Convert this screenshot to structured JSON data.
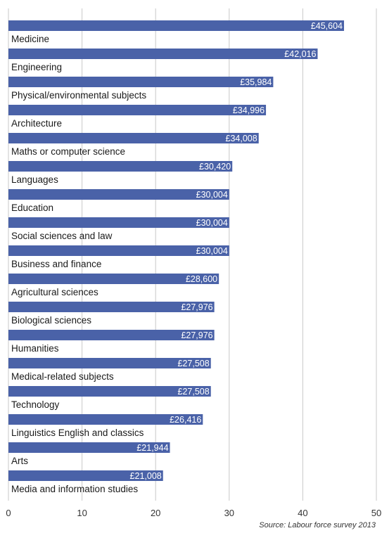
{
  "chart_data": {
    "type": "bar",
    "orientation": "horizontal",
    "categories": [
      "Medicine",
      "Engineering",
      "Physical/environmental subjects",
      "Architecture",
      "Maths or computer science",
      "Languages",
      "Education",
      "Social sciences and law",
      "Business and finance",
      "Agricultural sciences",
      "Biological sciences",
      "Humanities",
      "Medical-related subjects",
      "Technology",
      "Linguistics English and classics",
      "Arts",
      "Media and information studies"
    ],
    "values": [
      45.604,
      42.016,
      35.984,
      34.996,
      34.008,
      30.42,
      30.004,
      30.004,
      30.004,
      28.6,
      27.976,
      27.976,
      27.508,
      27.508,
      26.416,
      21.944,
      21.008
    ],
    "data_labels": [
      "£45,604",
      "£42,016",
      "£35,984",
      "£34,996",
      "£34,008",
      "£30,420",
      "£30,004",
      "£30,004",
      "£30,004",
      "£28,600",
      "£27,976",
      "£27,976",
      "£27,508",
      "£27,508",
      "£26,416",
      "£21,944",
      "£21,008"
    ],
    "xlim": [
      0,
      50
    ],
    "xticks": [
      "0",
      "10",
      "20",
      "30",
      "40",
      "50"
    ],
    "grid": "vertical",
    "bar_color": "#4a62a8",
    "label_color": "#ffffff",
    "source": "Source:  Labour force survey 2013"
  }
}
